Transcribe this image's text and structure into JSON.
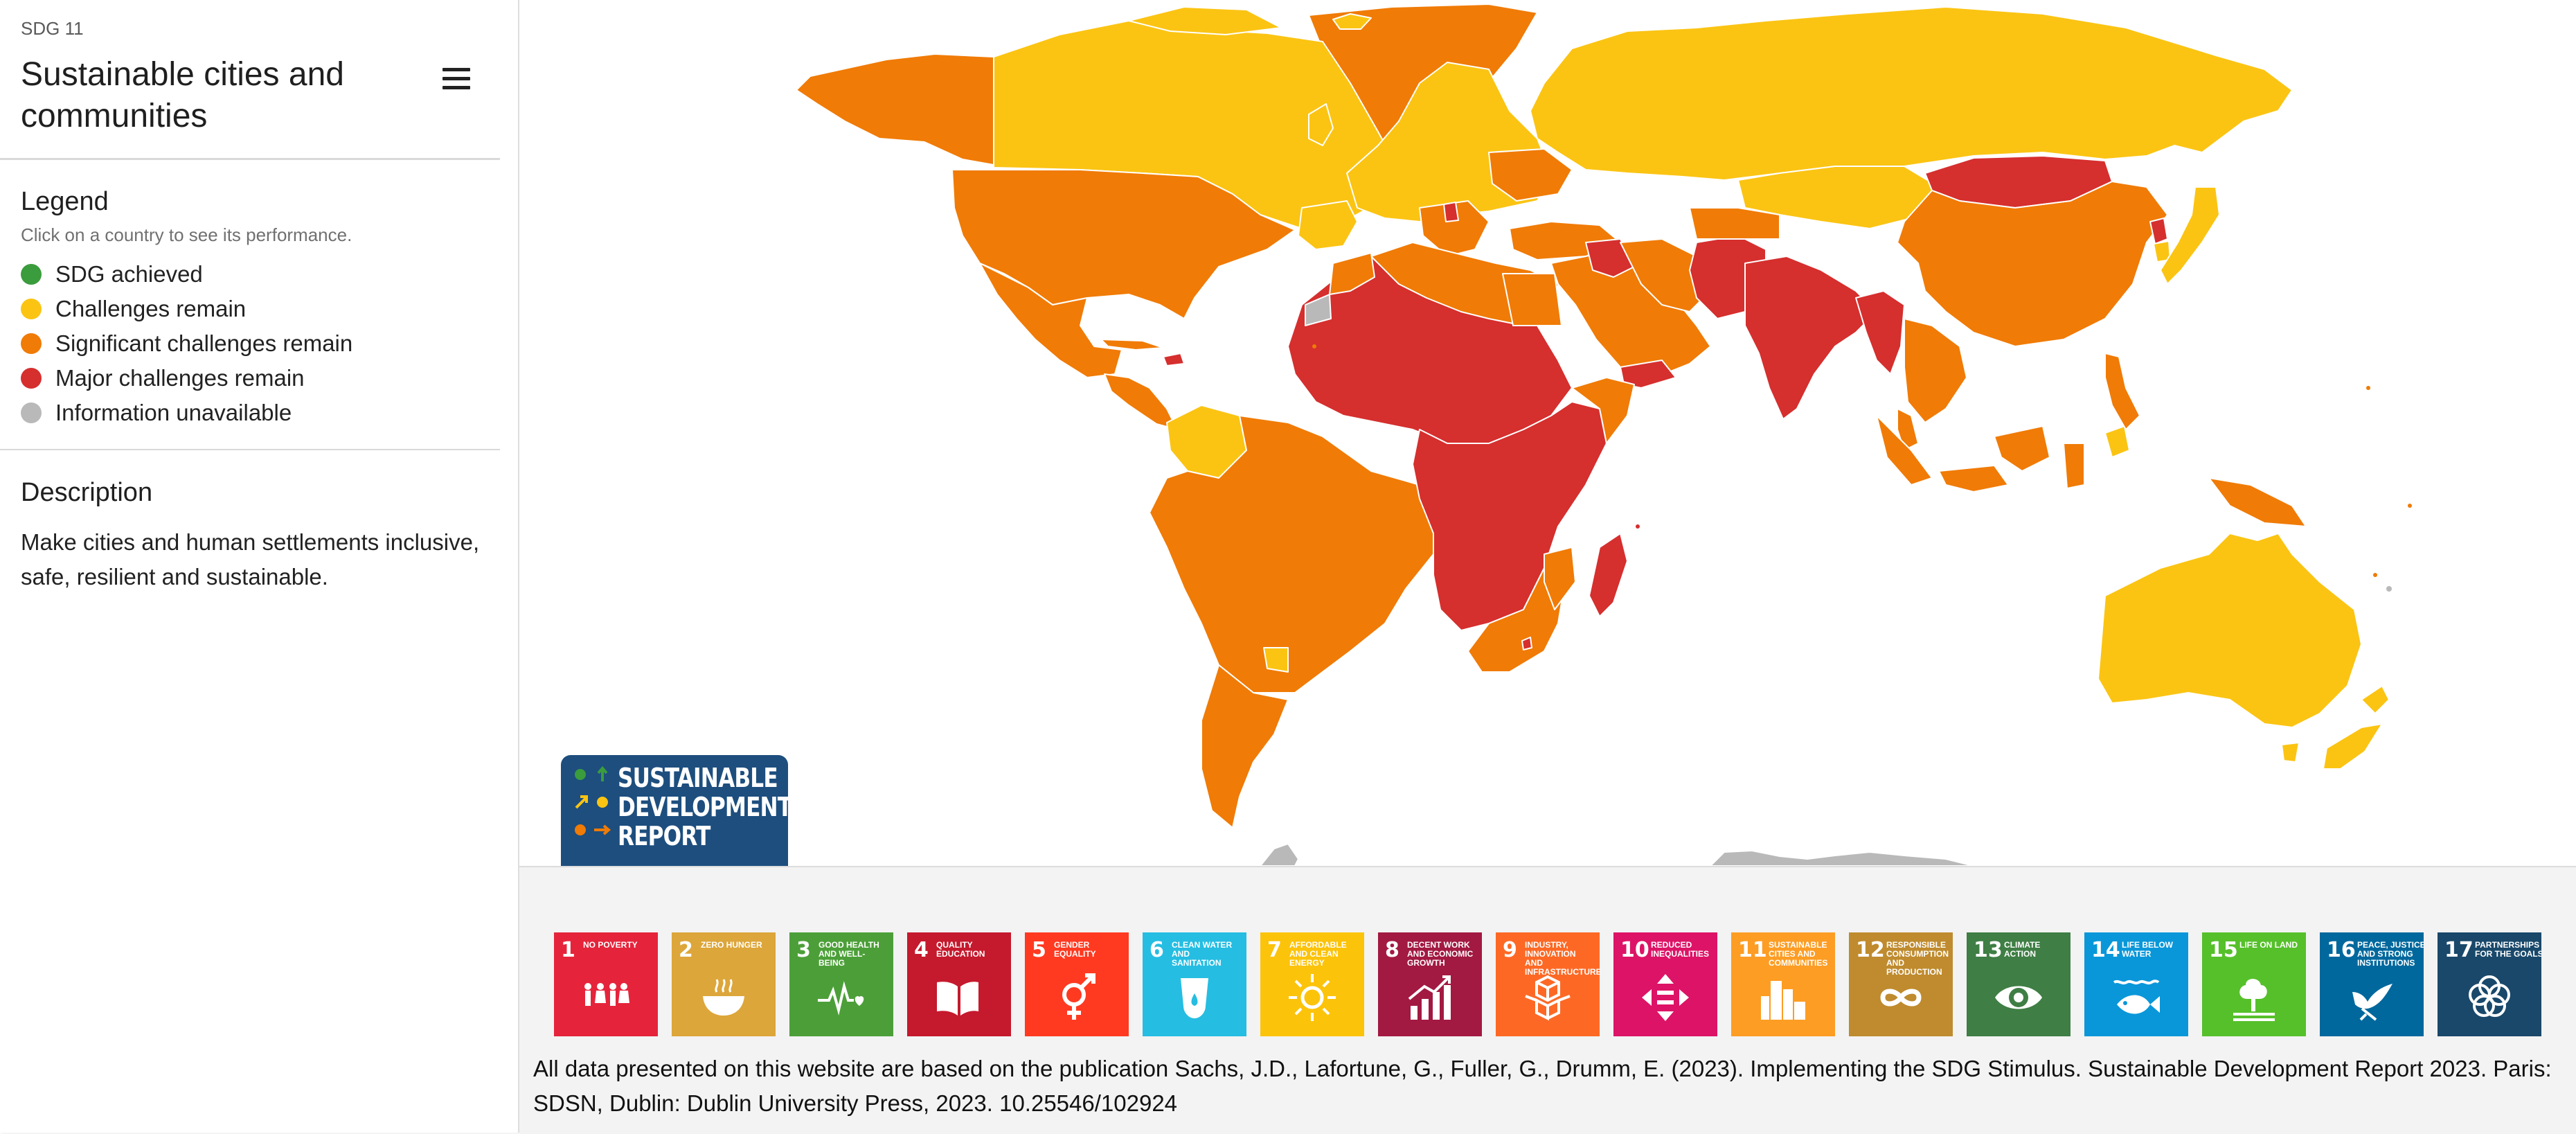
{
  "header": {
    "sdg_label": "SDG 11",
    "title": "Sustainable cities and communities",
    "menu_icon": "hamburger-menu-icon"
  },
  "legend": {
    "heading": "Legend",
    "subtitle": "Click on a country to see its performance.",
    "items": [
      {
        "label": "SDG achieved",
        "color": "#3a9c3c"
      },
      {
        "label": "Challenges remain",
        "color": "#fbc413"
      },
      {
        "label": "Significant challenges remain",
        "color": "#f07b06"
      },
      {
        "label": "Major challenges remain",
        "color": "#d52f2e"
      },
      {
        "label": "Information unavailable",
        "color": "#b9b9b9"
      }
    ]
  },
  "description": {
    "heading": "Description",
    "text": "Make cities and human settlements inclusive, safe, resilient and sustainable."
  },
  "map": {
    "status_colors": {
      "achieved": "#3a9c3c",
      "challenges": "#fbc413",
      "significant": "#f07b06",
      "major": "#d52f2e",
      "unavailable": "#b9b9b9"
    }
  },
  "logo": {
    "lines": [
      "SUSTAINABLE",
      "DEVELOPMENT",
      "REPORT"
    ]
  },
  "goals": [
    {
      "num": "1",
      "name": "No poverty",
      "color": "#e5243b",
      "icon": "people-icon"
    },
    {
      "num": "2",
      "name": "Zero hunger",
      "color": "#dda63a",
      "icon": "bowl-icon"
    },
    {
      "num": "3",
      "name": "Good health and well-being",
      "color": "#4c9f38",
      "icon": "heartbeat-icon"
    },
    {
      "num": "4",
      "name": "Quality education",
      "color": "#c5192d",
      "icon": "book-icon"
    },
    {
      "num": "5",
      "name": "Gender equality",
      "color": "#ff3a21",
      "icon": "gender-icon"
    },
    {
      "num": "6",
      "name": "Clean water and sanitation",
      "color": "#26bde2",
      "icon": "water-drop-icon"
    },
    {
      "num": "7",
      "name": "Affordable and clean energy",
      "color": "#fcc30b",
      "icon": "sun-icon"
    },
    {
      "num": "8",
      "name": "Decent work and economic growth",
      "color": "#a21942",
      "icon": "growth-chart-icon"
    },
    {
      "num": "9",
      "name": "Industry, innovation and infrastructure",
      "color": "#fd6925",
      "icon": "cubes-icon"
    },
    {
      "num": "10",
      "name": "Reduced inequalities",
      "color": "#dd1367",
      "icon": "equality-arrows-icon"
    },
    {
      "num": "11",
      "name": "Sustainable cities and communities",
      "color": "#fd9d24",
      "icon": "buildings-icon"
    },
    {
      "num": "12",
      "name": "Responsible consumption and production",
      "color": "#bf8b2e",
      "icon": "infinity-icon"
    },
    {
      "num": "13",
      "name": "Climate action",
      "color": "#3f7e44",
      "icon": "eye-globe-icon"
    },
    {
      "num": "14",
      "name": "Life below water",
      "color": "#0a97d9",
      "icon": "fish-icon"
    },
    {
      "num": "15",
      "name": "Life on land",
      "color": "#56c02b",
      "icon": "tree-icon"
    },
    {
      "num": "16",
      "name": "Peace, justice and strong institutions",
      "color": "#00689d",
      "icon": "dove-icon"
    },
    {
      "num": "17",
      "name": "Partnerships for the goals",
      "color": "#19486a",
      "icon": "rings-icon"
    }
  ],
  "footer": {
    "source": "All data presented on this website are based on the publication Sachs, J.D., Lafortune, G., Fuller, G., Drumm, E. (2023). Implementing the SDG Stimulus. Sustainable Development Report 2023. Paris: SDSN, Dublin: Dublin University Press, 2023. 10.25546/102924"
  }
}
